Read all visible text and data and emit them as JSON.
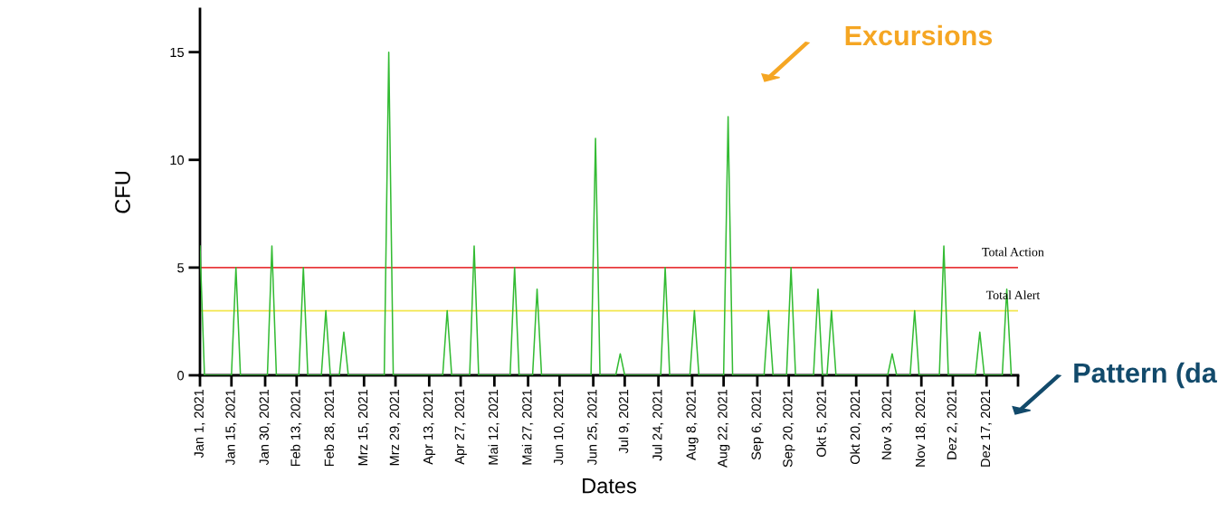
{
  "chart_data": {
    "type": "line",
    "xlabel": "Dates",
    "ylabel": "CFU",
    "x": [
      "2021-01-01",
      "2021-01-03",
      "2021-01-15",
      "2021-01-17",
      "2021-01-19",
      "2021-01-31",
      "2021-02-02",
      "2021-02-04",
      "2021-02-14",
      "2021-02-16",
      "2021-02-18",
      "2021-02-24",
      "2021-02-26",
      "2021-02-28",
      "2021-03-04",
      "2021-03-06",
      "2021-03-08",
      "2021-03-24",
      "2021-03-26",
      "2021-03-28",
      "2021-04-19",
      "2021-04-21",
      "2021-04-23",
      "2021-05-01",
      "2021-05-03",
      "2021-05-05",
      "2021-05-19",
      "2021-05-21",
      "2021-05-23",
      "2021-05-29",
      "2021-05-31",
      "2021-06-02",
      "2021-06-24",
      "2021-06-26",
      "2021-06-28",
      "2021-07-05",
      "2021-07-07",
      "2021-07-09",
      "2021-07-25",
      "2021-07-27",
      "2021-07-29",
      "2021-08-07",
      "2021-08-09",
      "2021-08-11",
      "2021-08-22",
      "2021-08-24",
      "2021-08-26",
      "2021-09-09",
      "2021-09-11",
      "2021-09-13",
      "2021-09-19",
      "2021-09-21",
      "2021-09-23",
      "2021-10-01",
      "2021-10-03",
      "2021-10-05",
      "2021-10-07",
      "2021-10-09",
      "2021-10-11",
      "2021-11-03",
      "2021-11-05",
      "2021-11-07",
      "2021-11-13",
      "2021-11-15",
      "2021-11-17",
      "2021-11-26",
      "2021-11-28",
      "2021-11-30",
      "2021-12-12",
      "2021-12-14",
      "2021-12-16",
      "2021-12-24",
      "2021-12-26",
      "2021-12-28"
    ],
    "series": [
      {
        "color": "#33bb33",
        "values": [
          6,
          0,
          0,
          5,
          0,
          0,
          6,
          0,
          0,
          5,
          0,
          0,
          3,
          0,
          0,
          2,
          0,
          0,
          15,
          0,
          0,
          3,
          0,
          0,
          6,
          0,
          0,
          5,
          0,
          0,
          4,
          0,
          0,
          11,
          0,
          0,
          1,
          0,
          0,
          5,
          0,
          0,
          3,
          0,
          0,
          12,
          0,
          0,
          3,
          0,
          0,
          5,
          0,
          0,
          4,
          0,
          0,
          3,
          0,
          0,
          1,
          0,
          0,
          3,
          0,
          0,
          6,
          0,
          0,
          2,
          0,
          0,
          4,
          0
        ]
      }
    ],
    "xlim": [
      "2021-01-01",
      "2021-12-31"
    ],
    "xticks": [
      {
        "value": "2021-01-01",
        "label": "Jan 1, 2021"
      },
      {
        "value": "2021-01-15",
        "label": "Jan 15, 2021"
      },
      {
        "value": "2021-01-30",
        "label": "Jan 30, 2021"
      },
      {
        "value": "2021-02-13",
        "label": "Feb 13, 2021"
      },
      {
        "value": "2021-02-28",
        "label": "Feb 28, 2021"
      },
      {
        "value": "2021-03-15",
        "label": "Mrz 15, 2021"
      },
      {
        "value": "2021-03-29",
        "label": "Mrz 29, 2021"
      },
      {
        "value": "2021-04-13",
        "label": "Apr 13, 2021"
      },
      {
        "value": "2021-04-27",
        "label": "Apr 27, 2021"
      },
      {
        "value": "2021-05-12",
        "label": "Mai 12, 2021"
      },
      {
        "value": "2021-05-27",
        "label": "Mai 27, 2021"
      },
      {
        "value": "2021-06-10",
        "label": "Jun 10, 2021"
      },
      {
        "value": "2021-06-25",
        "label": "Jun 25, 2021"
      },
      {
        "value": "2021-07-09",
        "label": "Jul 9, 2021"
      },
      {
        "value": "2021-07-24",
        "label": "Jul 24, 2021"
      },
      {
        "value": "2021-08-08",
        "label": "Aug 8, 2021"
      },
      {
        "value": "2021-08-22",
        "label": "Aug 22, 2021"
      },
      {
        "value": "2021-09-06",
        "label": "Sep 6, 2021"
      },
      {
        "value": "2021-09-20",
        "label": "Sep 20, 2021"
      },
      {
        "value": "2021-10-05",
        "label": "Okt 5, 2021"
      },
      {
        "value": "2021-10-20",
        "label": "Okt 20, 2021"
      },
      {
        "value": "2021-11-03",
        "label": "Nov 3, 2021"
      },
      {
        "value": "2021-11-18",
        "label": "Nov 18, 2021"
      },
      {
        "value": "2021-12-02",
        "label": "Dez 2, 2021"
      },
      {
        "value": "2021-12-17",
        "label": "Dez 17, 2021"
      },
      {
        "value": "2021-12-31",
        "label": null
      }
    ],
    "ylim": [
      0,
      17
    ],
    "yticks": [
      0,
      5,
      10,
      15
    ],
    "ref_lines": [
      {
        "axis": "y",
        "value": 5,
        "label": "Total Action",
        "color": "#e8393b"
      },
      {
        "axis": "y",
        "value": 3,
        "label": "Total Alert",
        "color": "#f3e64f"
      }
    ],
    "annotations": [
      "Excursions",
      "Pattern (da"
    ],
    "grid": false,
    "legend": false,
    "marker": "none",
    "line_style": "solid"
  }
}
